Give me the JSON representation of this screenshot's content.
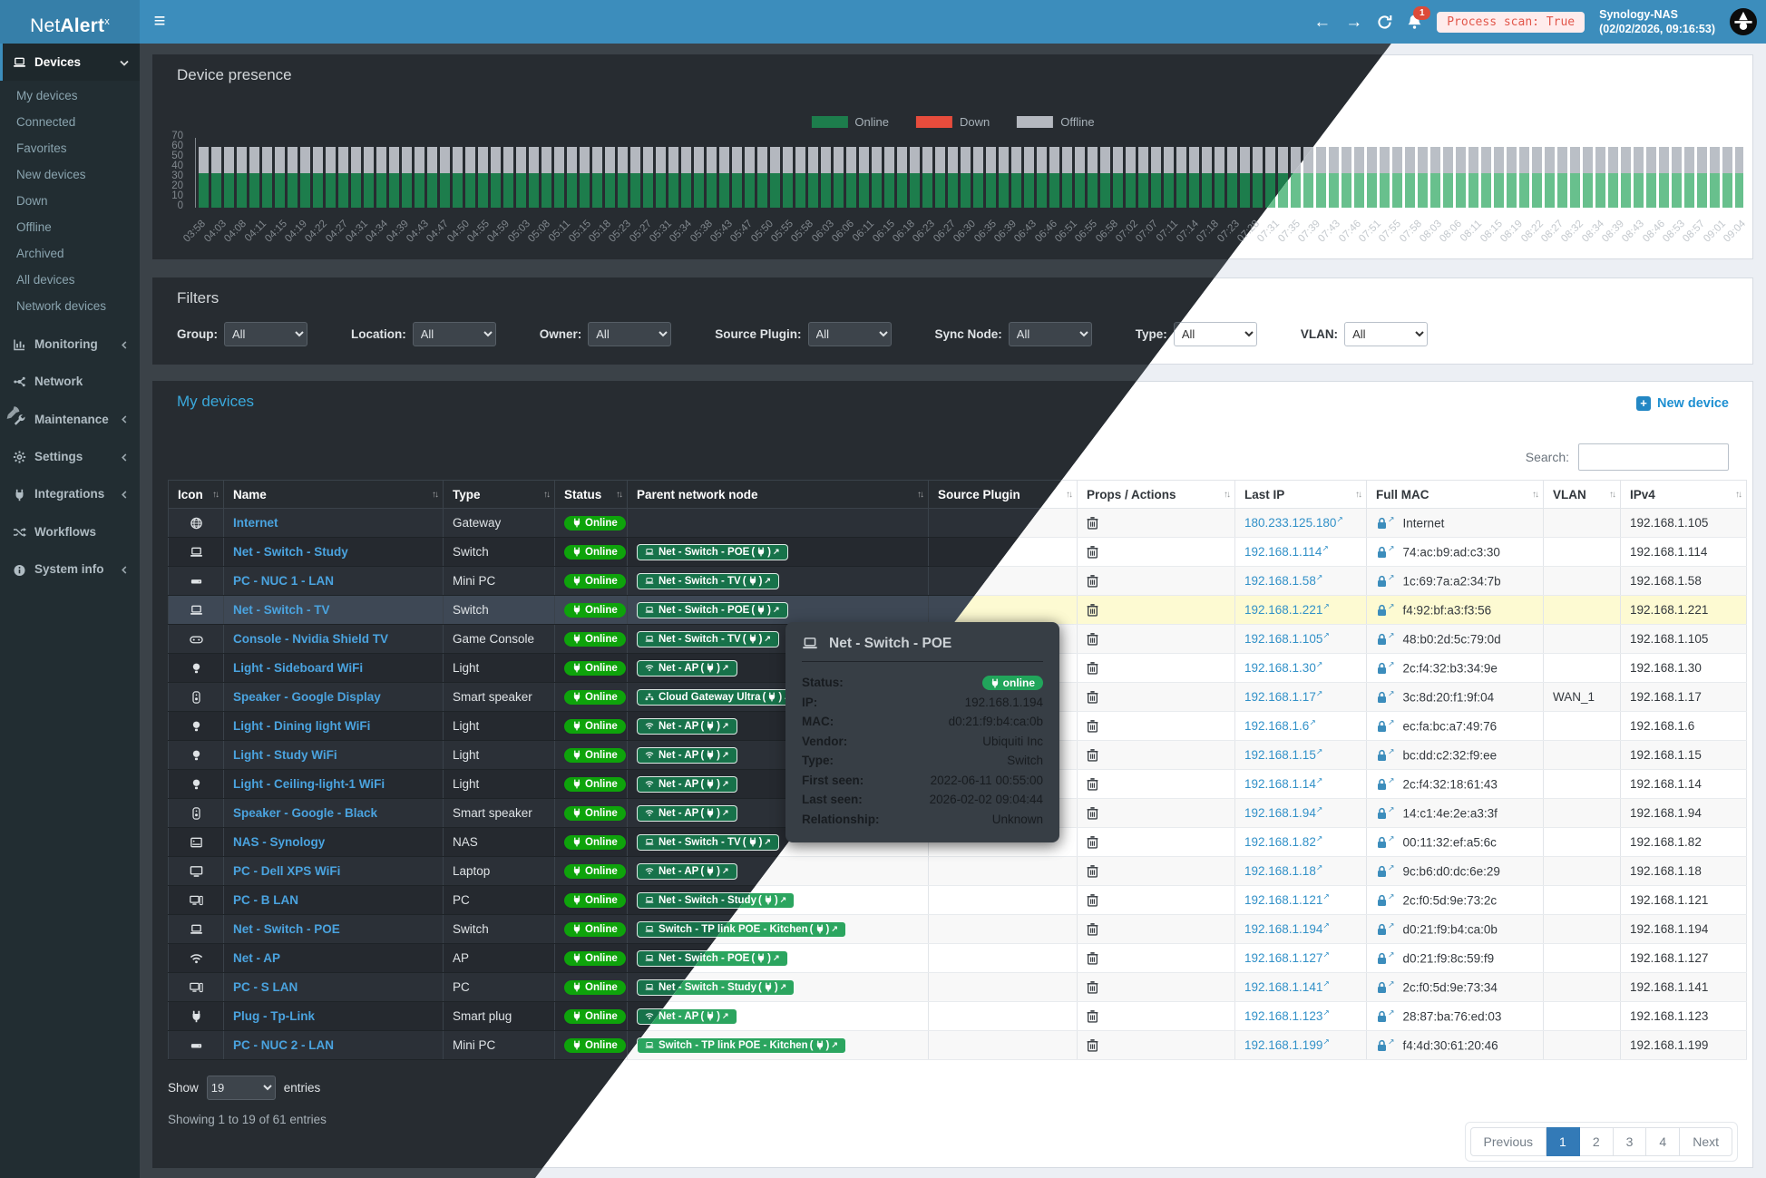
{
  "topbar": {
    "brand_net": "Net",
    "brand_alert": "Alert",
    "brand_sup": "x",
    "notification_count": "1",
    "process_scan": "Process scan: True",
    "host": "Synology-NAS",
    "timestamp": "(02/02/2026, 09:16:53)"
  },
  "sidebar": {
    "items": [
      {
        "label": "Devices",
        "icon": "laptop",
        "chevron": "down",
        "active": true,
        "submenu": [
          "My devices",
          "Connected",
          "Favorites",
          "New devices",
          "Down",
          "Offline",
          "Archived",
          "All devices",
          "Network devices"
        ]
      },
      {
        "label": "Monitoring",
        "icon": "chart",
        "chevron": "left"
      },
      {
        "label": "Network",
        "icon": "network"
      },
      {
        "label": "Maintenance",
        "icon": "wrench",
        "chevron": "left"
      },
      {
        "label": "Settings",
        "icon": "gear",
        "chevron": "left"
      },
      {
        "label": "Integrations",
        "icon": "plug",
        "chevron": "left"
      },
      {
        "label": "Workflows",
        "icon": "shuffle"
      },
      {
        "label": "System info",
        "icon": "info",
        "chevron": "left"
      }
    ]
  },
  "chart_data": {
    "type": "bar",
    "stacked": true,
    "title": "Device presence",
    "ylim": [
      0,
      70
    ],
    "yticks": [
      0,
      10,
      20,
      30,
      40,
      50,
      60,
      70
    ],
    "bar_count": 122,
    "per_bar": {
      "online": 35,
      "down": 0,
      "offline": 26
    },
    "legend": [
      {
        "label": "Online",
        "color_dark": "#1d7d4c",
        "color_light": "#68c08d"
      },
      {
        "label": "Down",
        "color_dark": "#e74c3c",
        "color_light": "#e74c3c"
      },
      {
        "label": "Offline",
        "color_dark": "#b4b8bf",
        "color_light": "#babfc6"
      }
    ],
    "x_labels": [
      "03:58",
      "04:03",
      "04:08",
      "04:11",
      "04:15",
      "04:19",
      "04:22",
      "04:27",
      "04:31",
      "04:34",
      "04:39",
      "04:43",
      "04:47",
      "04:50",
      "04:55",
      "04:59",
      "05:03",
      "05:08",
      "05:11",
      "05:15",
      "05:18",
      "05:23",
      "05:27",
      "05:31",
      "05:34",
      "05:38",
      "05:43",
      "05:47",
      "05:50",
      "05:55",
      "05:58",
      "06:03",
      "06:06",
      "06:11",
      "06:15",
      "06:18",
      "06:23",
      "06:27",
      "06:30",
      "06:35",
      "06:39",
      "06:43",
      "06:46",
      "06:51",
      "06:55",
      "06:58",
      "07:02",
      "07:07",
      "07:11",
      "07:14",
      "07:18",
      "07:23",
      "07:28",
      "07:31",
      "07:35",
      "07:39",
      "07:43",
      "07:46",
      "07:51",
      "07:55",
      "07:58",
      "08:03",
      "08:06",
      "08:11",
      "08:15",
      "08:19",
      "08:22",
      "08:27",
      "08:32",
      "08:34",
      "08:39",
      "08:43",
      "08:46",
      "08:53",
      "08:57",
      "09:01",
      "09:04"
    ]
  },
  "filters": {
    "title": "Filters",
    "items": [
      {
        "label": "Group:",
        "value": "All"
      },
      {
        "label": "Location:",
        "value": "All"
      },
      {
        "label": "Owner:",
        "value": "All"
      },
      {
        "label": "Source Plugin:",
        "value": "All"
      },
      {
        "label": "Sync Node:",
        "value": "All"
      },
      {
        "label": "Type:",
        "value": "All"
      },
      {
        "label": "VLAN:",
        "value": "All"
      }
    ]
  },
  "devices": {
    "title": "My devices",
    "new_device": "New device",
    "search_label": "Search:",
    "columns": [
      "Icon",
      "Name",
      "Type",
      "Status",
      "Parent network node",
      "Source Plugin",
      "Props / Actions",
      "Last IP",
      "Full MAC",
      "VLAN",
      "IPv4"
    ],
    "rows": [
      {
        "icon": "globe",
        "name": "Internet",
        "type": "Gateway",
        "status": "Online",
        "parent": "",
        "parent_icon": "",
        "source_plugin": "",
        "last_ip": "180.233.125.180",
        "mac": "Internet",
        "vlan": "",
        "ipv4": "192.168.1.105",
        "selected": false
      },
      {
        "icon": "laptop",
        "name": "Net - Switch - Study",
        "type": "Switch",
        "status": "Online",
        "parent": "Net - Switch - POE",
        "parent_icon": "laptop",
        "source_plugin": "",
        "last_ip": "192.168.1.114",
        "mac": "74:ac:b9:ad:c3:30",
        "vlan": "",
        "ipv4": "192.168.1.114",
        "selected": false
      },
      {
        "icon": "minipc",
        "name": "PC - NUC 1 - LAN",
        "type": "Mini PC",
        "status": "Online",
        "parent": "Net - Switch - TV",
        "parent_icon": "laptop",
        "source_plugin": "",
        "last_ip": "192.168.1.58",
        "mac": "1c:69:7a:a2:34:7b",
        "vlan": "",
        "ipv4": "192.168.1.58",
        "selected": false
      },
      {
        "icon": "laptop",
        "name": "Net - Switch - TV",
        "type": "Switch",
        "status": "Online",
        "parent": "Net - Switch - POE",
        "parent_icon": "laptop",
        "source_plugin": "",
        "last_ip": "192.168.1.221",
        "mac": "f4:92:bf:a3:f3:56",
        "vlan": "",
        "ipv4": "192.168.1.221",
        "selected": true
      },
      {
        "icon": "gamepad",
        "name": "Console - Nvidia Shield TV",
        "type": "Game Console",
        "status": "Online",
        "parent": "Net - Switch - TV",
        "parent_icon": "laptop",
        "source_plugin": "",
        "last_ip": "192.168.1.105",
        "mac": "48:b0:2d:5c:79:0d",
        "vlan": "",
        "ipv4": "192.168.1.105",
        "selected": false
      },
      {
        "icon": "lightbulb",
        "name": "Light - Sideboard WiFi",
        "type": "Light",
        "status": "Online",
        "parent": "Net - AP",
        "parent_icon": "wifi",
        "source_plugin": "",
        "last_ip": "192.168.1.30",
        "mac": "2c:f4:32:b3:34:9e",
        "vlan": "",
        "ipv4": "192.168.1.30",
        "selected": false
      },
      {
        "icon": "speaker",
        "name": "Speaker - Google Display",
        "type": "Smart speaker",
        "status": "Online",
        "parent": "Cloud Gateway Ultra",
        "parent_icon": "sitemap",
        "source_plugin": "",
        "last_ip": "192.168.1.17",
        "mac": "3c:8d:20:f1:9f:04",
        "vlan": "WAN_1",
        "ipv4": "192.168.1.17",
        "selected": false
      },
      {
        "icon": "lightbulb",
        "name": "Light - Dining light WiFi",
        "type": "Light",
        "status": "Online",
        "parent": "Net - AP",
        "parent_icon": "wifi",
        "source_plugin": "",
        "last_ip": "192.168.1.6",
        "mac": "ec:fa:bc:a7:49:76",
        "vlan": "",
        "ipv4": "192.168.1.6",
        "selected": false
      },
      {
        "icon": "lightbulb",
        "name": "Light - Study WiFi",
        "type": "Light",
        "status": "Online",
        "parent": "Net - AP",
        "parent_icon": "wifi",
        "source_plugin": "",
        "last_ip": "192.168.1.15",
        "mac": "bc:dd:c2:32:f9:ee",
        "vlan": "",
        "ipv4": "192.168.1.15",
        "selected": false
      },
      {
        "icon": "lightbulb",
        "name": "Light - Ceiling-light-1 WiFi",
        "type": "Light",
        "status": "Online",
        "parent": "Net - AP",
        "parent_icon": "wifi",
        "source_plugin": "",
        "last_ip": "192.168.1.14",
        "mac": "2c:f4:32:18:61:43",
        "vlan": "",
        "ipv4": "192.168.1.14",
        "selected": false
      },
      {
        "icon": "speaker",
        "name": "Speaker - Google - Black",
        "type": "Smart speaker",
        "status": "Online",
        "parent": "Net - AP",
        "parent_icon": "wifi",
        "source_plugin": "",
        "last_ip": "192.168.1.94",
        "mac": "14:c1:4e:2e:a3:3f",
        "vlan": "",
        "ipv4": "192.168.1.94",
        "selected": false
      },
      {
        "icon": "nas",
        "name": "NAS - Synology",
        "type": "NAS",
        "status": "Online",
        "parent": "Net - Switch - TV",
        "parent_icon": "laptop",
        "source_plugin": "",
        "last_ip": "192.168.1.82",
        "mac": "00:11:32:ef:a5:6c",
        "vlan": "",
        "ipv4": "192.168.1.82",
        "selected": false
      },
      {
        "icon": "monitor",
        "name": "PC - Dell XPS WiFi",
        "type": "Laptop",
        "status": "Online",
        "parent": "Net - AP",
        "parent_icon": "wifi",
        "source_plugin": "",
        "last_ip": "192.168.1.18",
        "mac": "9c:b6:d0:dc:6e:29",
        "vlan": "",
        "ipv4": "192.168.1.18",
        "selected": false
      },
      {
        "icon": "desktop",
        "name": "PC - B LAN",
        "type": "PC",
        "status": "Online",
        "parent": "Net - Switch - Study",
        "parent_icon": "laptop",
        "source_plugin": "",
        "last_ip": "192.168.1.121",
        "mac": "2c:f0:5d:9e:73:2c",
        "vlan": "",
        "ipv4": "192.168.1.121",
        "selected": false
      },
      {
        "icon": "laptop",
        "name": "Net - Switch - POE",
        "type": "Switch",
        "status": "Online",
        "parent": "Switch - TP link POE - Kitchen",
        "parent_icon": "laptop",
        "source_plugin": "",
        "last_ip": "192.168.1.194",
        "mac": "d0:21:f9:b4:ca:0b",
        "vlan": "",
        "ipv4": "192.168.1.194",
        "selected": false
      },
      {
        "icon": "wifi",
        "name": "Net - AP",
        "type": "AP",
        "status": "Online",
        "parent": "Net - Switch - POE",
        "parent_icon": "laptop",
        "source_plugin": "",
        "last_ip": "192.168.1.127",
        "mac": "d0:21:f9:8c:59:f9",
        "vlan": "",
        "ipv4": "192.168.1.127",
        "selected": false
      },
      {
        "icon": "desktop",
        "name": "PC - S LAN",
        "type": "PC",
        "status": "Online",
        "parent": "Net - Switch - Study",
        "parent_icon": "laptop",
        "source_plugin": "",
        "last_ip": "192.168.1.141",
        "mac": "2c:f0:5d:9e:73:34",
        "vlan": "",
        "ipv4": "192.168.1.141",
        "selected": false
      },
      {
        "icon": "plug",
        "name": "Plug - Tp-Link",
        "type": "Smart plug",
        "status": "Online",
        "parent": "Net - AP",
        "parent_icon": "wifi",
        "source_plugin": "",
        "last_ip": "192.168.1.123",
        "mac": "28:87:ba:76:ed:03",
        "vlan": "",
        "ipv4": "192.168.1.123",
        "selected": false
      },
      {
        "icon": "minipc",
        "name": "PC - NUC 2 - LAN",
        "type": "Mini PC",
        "status": "Online",
        "parent": "Switch - TP link POE - Kitchen",
        "parent_icon": "laptop",
        "source_plugin": "",
        "last_ip": "192.168.1.199",
        "mac": "f4:4d:30:61:20:46",
        "vlan": "",
        "ipv4": "192.168.1.199",
        "selected": false
      }
    ],
    "show_label": "Show",
    "entries_value": "19",
    "entries_label": "entries",
    "summary": "Showing 1 to 19 of 61 entries",
    "pagination": {
      "prev": "Previous",
      "pages": [
        "1",
        "2",
        "3",
        "4"
      ],
      "active": "1",
      "next": "Next"
    }
  },
  "tooltip": {
    "title": "Net - Switch - POE",
    "icon": "laptop",
    "fields": [
      {
        "label": "Status:",
        "value": "online",
        "badge": true
      },
      {
        "label": "IP:",
        "value": "192.168.1.194"
      },
      {
        "label": "MAC:",
        "value": "d0:21:f9:b4:ca:0b"
      },
      {
        "label": "Vendor:",
        "value": "Ubiquiti Inc"
      },
      {
        "label": "Type:",
        "value": "Switch"
      },
      {
        "label": "First seen:",
        "value": "2022-06-11 00:55:00"
      },
      {
        "label": "Last seen:",
        "value": "2026-02-02 09:04:44"
      },
      {
        "label": "Relationship:",
        "value": "Unknown"
      }
    ]
  }
}
